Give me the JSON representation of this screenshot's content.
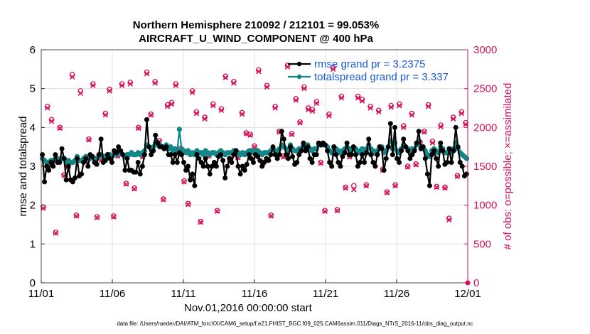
{
  "chart_data": {
    "type": "line",
    "title": "Northern Hemisphere 210092 / 212101 = 99.053%",
    "subtitle": "AIRCRAFT_U_WIND_COMPONENT @ 400 hPa",
    "xlabel": "Nov.01,2016 00:00:00 start",
    "ylabel_left": "rmse and totalspread",
    "ylabel_right": "# of obs: o=possible; ×=assimilated",
    "xlim": [
      0,
      30
    ],
    "ylim_left": [
      0,
      6
    ],
    "ylim_right": [
      0,
      3000
    ],
    "x_ticks": [
      0,
      5,
      10,
      15,
      20,
      25,
      30
    ],
    "x_tick_labels": [
      "11/01",
      "11/06",
      "11/11",
      "11/16",
      "11/21",
      "11/26",
      "12/01"
    ],
    "y_ticks_left": [
      0,
      1,
      2,
      3,
      4,
      5,
      6
    ],
    "y_tick_labels_left": [
      "0",
      "1",
      "2",
      "3",
      "4",
      "5",
      "6"
    ],
    "y_ticks_right": [
      0,
      500,
      1000,
      1500,
      2000,
      2500,
      3000
    ],
    "y_tick_labels_right": [
      "0",
      "500",
      "1000",
      "1500",
      "2000",
      "2500",
      "3000"
    ],
    "grid": true,
    "legend_position": "top-right",
    "colors": {
      "rmse": "#000000",
      "spread": "#138787",
      "obs": "#d6115a",
      "legend_text": "#1a5adc"
    },
    "series": [
      {
        "name": "rmse grand pr = 3.2375",
        "axis": "left",
        "marker": "circle",
        "values": [
          3.3,
          2.6,
          3.0,
          2.9,
          3.1,
          3.0,
          3.3,
          3.1,
          3.1,
          3.45,
          3.2,
          2.65,
          3.0,
          2.65,
          2.6,
          2.7,
          3.2,
          2.75,
          2.8,
          3.1,
          3.2,
          3.0,
          3.3,
          3.25,
          3.1,
          3.05,
          3.3,
          3.7,
          3.1,
          3.15,
          3.3,
          3.2,
          3.1,
          3.4,
          3.35,
          3.5,
          3.4,
          3.3,
          2.9,
          3.2,
          2.9,
          2.9,
          2.85,
          2.85,
          3.1,
          2.8,
          3.0,
          3.3,
          4.2,
          3.5,
          3.3,
          3.4,
          3.8,
          3.6,
          3.5,
          3.5,
          3.45,
          3.5,
          3.3,
          3.3,
          3.1,
          3.3,
          3.1,
          3.35,
          3.3,
          3.1,
          2.9,
          3.0,
          2.65,
          2.8,
          2.5,
          3.3,
          3.2,
          3.1,
          3.0,
          3.2,
          3.0,
          2.8,
          3.0,
          3.1,
          3.0,
          3.25,
          3.3,
          3.15,
          2.7,
          3.0,
          3.2,
          3.1,
          3.3,
          3.4,
          3.0,
          2.8,
          3.0,
          2.9,
          3.05,
          3.3,
          3.2,
          3.1,
          3.3,
          3.25,
          3.15,
          3.0,
          3.1,
          3.2,
          3.15,
          3.3,
          3.5,
          3.3,
          3.2,
          3.3,
          3.9,
          3.7,
          3.3,
          3.2,
          3.5,
          3.25,
          3.05,
          3.1,
          3.3,
          3.4,
          3.6,
          3.4,
          3.5,
          3.2,
          3.1,
          3.3,
          3.3,
          3.6,
          3.55,
          3.6,
          3.55,
          3.4,
          3.1,
          3.0,
          3.5,
          3.3,
          3.1,
          3.0,
          3.25,
          3.35,
          3.6,
          3.3,
          3.3,
          3.5,
          3.3,
          3.0,
          3.1,
          3.3,
          3.1,
          3.35,
          3.7,
          3.3,
          3.1,
          3.0,
          3.3,
          3.5,
          3.45,
          2.9,
          3.2,
          3.5,
          4.1,
          3.3,
          4.0,
          3.2,
          3.1,
          3.4,
          3.7,
          3.5,
          3.4,
          3.2,
          3.3,
          3.4,
          3.6,
          3.9,
          3.45,
          3.5,
          3.2,
          2.8,
          2.5,
          3.3,
          3.4,
          3.2,
          3.0,
          3.6,
          3.4,
          3.05,
          3.1,
          3.45,
          3.1,
          3.4,
          4.0,
          3.5,
          3.1,
          3.0,
          2.75,
          2.8
        ]
      },
      {
        "name": "totalspread grand pr = 3.337",
        "axis": "left",
        "marker": "circle",
        "values": [
          3.2,
          3.15,
          3.1,
          3.1,
          3.15,
          3.15,
          3.2,
          3.2,
          3.15,
          3.2,
          3.2,
          3.1,
          3.15,
          3.1,
          3.1,
          3.15,
          3.25,
          3.15,
          3.15,
          3.2,
          3.25,
          3.2,
          3.2,
          3.25,
          3.2,
          3.2,
          3.25,
          3.3,
          3.25,
          3.25,
          3.3,
          3.3,
          3.25,
          3.3,
          3.3,
          3.35,
          3.35,
          3.3,
          3.25,
          3.3,
          3.3,
          3.35,
          3.3,
          3.3,
          3.35,
          3.3,
          3.35,
          3.4,
          3.55,
          3.5,
          3.45,
          3.5,
          3.6,
          3.55,
          3.55,
          3.5,
          3.5,
          3.55,
          3.45,
          3.5,
          3.4,
          3.45,
          3.4,
          3.95,
          3.45,
          3.4,
          3.35,
          3.4,
          3.3,
          3.35,
          3.3,
          3.4,
          3.35,
          3.35,
          3.3,
          3.4,
          3.35,
          3.3,
          3.35,
          3.35,
          3.3,
          3.35,
          3.4,
          3.35,
          3.3,
          3.35,
          3.35,
          3.35,
          3.4,
          3.4,
          3.35,
          3.3,
          3.35,
          3.3,
          3.35,
          3.4,
          3.4,
          3.35,
          3.4,
          3.4,
          3.35,
          3.3,
          3.35,
          3.35,
          3.35,
          3.4,
          3.45,
          3.4,
          3.4,
          3.45,
          3.55,
          3.5,
          3.45,
          3.4,
          3.55,
          3.45,
          3.4,
          3.4,
          3.45,
          3.45,
          3.55,
          3.5,
          3.55,
          3.45,
          3.4,
          3.45,
          3.45,
          3.55,
          3.55,
          3.55,
          3.55,
          3.5,
          3.4,
          3.35,
          3.5,
          3.45,
          3.4,
          3.35,
          3.4,
          3.45,
          3.5,
          3.45,
          3.4,
          3.5,
          3.45,
          3.35,
          3.4,
          3.45,
          3.35,
          3.45,
          3.55,
          3.45,
          3.4,
          3.35,
          3.4,
          3.5,
          3.5,
          3.35,
          3.4,
          3.5,
          3.65,
          3.45,
          3.6,
          3.4,
          3.35,
          3.45,
          3.55,
          3.5,
          3.45,
          3.4,
          3.45,
          3.45,
          3.55,
          3.65,
          3.5,
          3.5,
          3.4,
          3.3,
          3.25,
          3.4,
          3.45,
          3.4,
          3.35,
          3.5,
          3.45,
          3.35,
          3.35,
          3.45,
          3.35,
          3.45,
          3.6,
          3.45,
          3.35,
          3.3,
          3.25,
          3.2
        ]
      },
      {
        "name": "obs possible",
        "axis": "right",
        "marker": "o",
        "values": [
          975,
          2270,
          2100,
          650,
          2000,
          1390,
          1500,
          2680,
          870,
          2470,
          1600,
          1850,
          2560,
          850,
          1590,
          2180,
          2490,
          860,
          1640,
          2560,
          1280,
          2580,
          1220,
          2000,
          1630,
          2710,
          2170,
          2590,
          1830,
          1080,
          2290,
          2320,
          2560,
          1730,
          1310,
          1020,
          2470,
          2200,
          790,
          2130,
          1640,
          2300,
          930,
          2240,
          2660,
          1600,
          2590,
          1620,
          2190,
          1930,
          1910,
          1760,
          2740,
          1550,
          2540,
          870,
          2270,
          1950,
          1630,
          2800,
          1920,
          2370,
          2070,
          2520,
          2250,
          2230,
          2330,
          1550,
          930,
          2170,
          2770,
          940,
          2400,
          1230,
          1630,
          1250,
          2400,
          2360,
          1260,
          2270,
          1670,
          2220,
          1460,
          1170,
          2280,
          1260,
          2300,
          2020,
          1500,
          2180,
          1530,
          1810,
          1950,
          2290,
          1820,
          1240,
          2030,
          1230,
          830,
          2130,
          1380,
          2200,
          2060
        ]
      },
      {
        "name": "obs assimilated",
        "axis": "right",
        "marker": "x",
        "values": [
          960,
          2250,
          2080,
          640,
          1990,
          1380,
          1490,
          2650,
          860,
          2440,
          1590,
          1840,
          2540,
          840,
          1580,
          2160,
          2470,
          850,
          1630,
          2540,
          1270,
          2560,
          1210,
          1990,
          1620,
          2690,
          2160,
          2570,
          1820,
          1070,
          2270,
          2300,
          2540,
          1720,
          1300,
          1010,
          2450,
          2180,
          780,
          2110,
          1630,
          2280,
          920,
          2220,
          2640,
          1590,
          2570,
          1610,
          2170,
          1920,
          1900,
          1750,
          2720,
          1540,
          2520,
          860,
          2250,
          1940,
          1620,
          2780,
          1910,
          2350,
          2060,
          2500,
          2230,
          2210,
          2310,
          1540,
          920,
          2150,
          2750,
          930,
          2380,
          1220,
          1620,
          1200,
          2380,
          2340,
          1250,
          2250,
          1660,
          2200,
          1450,
          1160,
          2260,
          1250,
          2280,
          2000,
          1490,
          2160,
          1520,
          1800,
          1940,
          2270,
          1800,
          1230,
          2010,
          1220,
          810,
          2110,
          1370,
          2180,
          2040
        ]
      }
    ],
    "footer": "data file: /Users/raeder/DAI/ATM_forcXX/CAM6_setup/f.e21.FHIST_BGC.f09_025.CAM6assim.011/Diags_NTrS_2016-11/obs_diag_output.nc"
  }
}
